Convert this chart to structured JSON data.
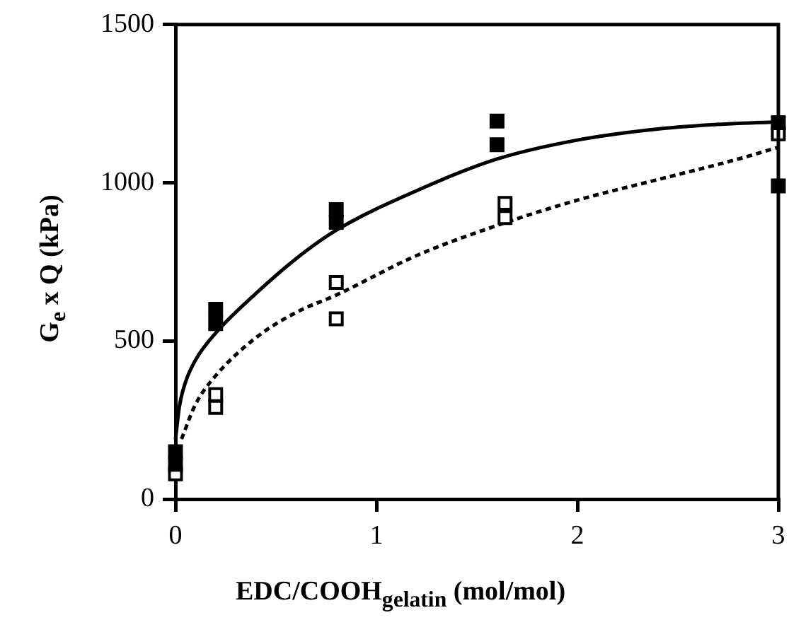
{
  "chart_data": {
    "type": "scatter",
    "xlabel": "EDC/COOH$_{gelatin}$ (mol/mol)",
    "ylabel": "G$_{e}$ x Q (kPa)",
    "xlim": [
      0,
      3
    ],
    "xticks": [
      0,
      1,
      2,
      3
    ],
    "ylim": [
      0,
      1500
    ],
    "yticks": [
      0,
      500,
      1000,
      1500
    ],
    "marker": "square",
    "series": [
      {
        "color": "#000000",
        "x": [
          0,
          0,
          0.2,
          0.2,
          0.8,
          0.8,
          1.6,
          1.6,
          3,
          3
        ],
        "values": [
          150,
          110,
          600,
          555,
          915,
          875,
          1195,
          1120,
          1190,
          990
        ]
      },
      {
        "color": "#ffffff",
        "x": [
          0,
          0.2,
          0.2,
          0.8,
          0.8,
          1.64,
          1.64,
          3
        ],
        "values": [
          80,
          330,
          290,
          685,
          570,
          935,
          890,
          1155
        ]
      },
      {
        "type": "line",
        "color": "#000000",
        "marker": "none",
        "line_style": "solid",
        "x": [
          0,
          0.02,
          0.05,
          0.1,
          0.2,
          0.4,
          0.6,
          0.8,
          1.2,
          1.6,
          2.0,
          2.4,
          2.8,
          3.0
        ],
        "values": [
          190,
          295,
          370,
          440,
          525,
          650,
          760,
          850,
          975,
          1075,
          1135,
          1170,
          1188,
          1192
        ]
      },
      {
        "type": "line",
        "color": "#000000",
        "marker": "none",
        "line_style": "dashed",
        "x": [
          0.03,
          0.1,
          0.2,
          0.4,
          0.6,
          0.8,
          1.2,
          1.6,
          2.0,
          2.4,
          2.8,
          3.0
        ],
        "values": [
          190,
          300,
          390,
          510,
          590,
          645,
          770,
          865,
          945,
          1010,
          1075,
          1112
        ]
      }
    ]
  }
}
